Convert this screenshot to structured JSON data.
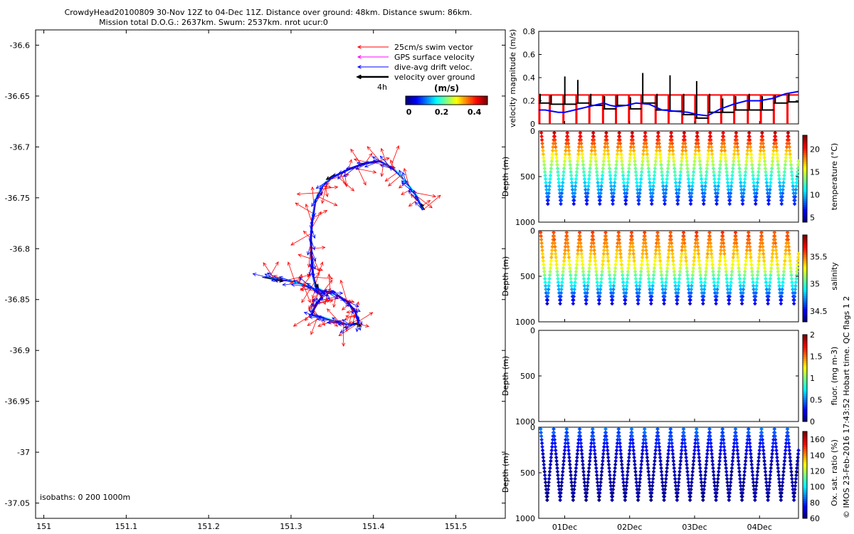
{
  "header": {
    "line1": "CrowdyHead20100809 30-Nov 12Z to 04-Dec 11Z. Distance over ground: 48km. Distance swum: 86km.",
    "line2": "Mission total D.O.G.: 2637km. Swum: 2537km. nrot ucur:0"
  },
  "side_note": "© IMOS 23-Feb-2016 17:43:52 Hobart time. QC flags 1  2",
  "colors": {
    "swim": "#ff0000",
    "gps": "#ff00ff",
    "drift": "#0000ff",
    "ground": "#000000",
    "limit": "#ff0000"
  },
  "chart_data": [
    {
      "id": "map",
      "type": "scatter",
      "title": "",
      "xlabel": "",
      "ylabel": "",
      "xlim": [
        150.99,
        151.56
      ],
      "ylim": [
        -37.065,
        -36.585
      ],
      "x_ticks": [
        "151",
        "151.1",
        "151.2",
        "151.3",
        "151.4",
        "151.5"
      ],
      "x_tick_values": [
        151,
        151.1,
        151.2,
        151.3,
        151.4,
        151.5
      ],
      "y_ticks": [
        "-36.6",
        "-36.65",
        "-36.7",
        "-36.75",
        "-36.8",
        "-36.85",
        "-36.9",
        "-36.95",
        "-37",
        "-37.05"
      ],
      "y_tick_values": [
        -36.6,
        -36.65,
        -36.7,
        -36.75,
        -36.8,
        -36.85,
        -36.9,
        -36.95,
        -37,
        -37.05
      ],
      "legend": [
        {
          "label": "25cm/s swim vector",
          "color": "#ff0000"
        },
        {
          "label": "GPS surface velocity",
          "color": "#ff00ff"
        },
        {
          "label": "dive-avg drift veloc.",
          "color": "#0000ff"
        },
        {
          "label": "velocity over ground",
          "color": "#000000"
        }
      ],
      "legend_extra": "4h",
      "colorbar": {
        "title": "(m/s)",
        "ticks": [
          "0",
          "0.2",
          "0.4"
        ],
        "range": [
          -0.02,
          0.48
        ]
      },
      "isobaths_label": "isobaths: 0   200  1000m",
      "track": [
        [
          151.46,
          -36.762
        ],
        [
          151.452,
          -36.748
        ],
        [
          151.44,
          -36.735
        ],
        [
          151.425,
          -36.722
        ],
        [
          151.408,
          -36.714
        ],
        [
          151.39,
          -36.716
        ],
        [
          151.37,
          -36.722
        ],
        [
          151.35,
          -36.73
        ],
        [
          151.338,
          -36.738
        ],
        [
          151.33,
          -36.752
        ],
        [
          151.326,
          -36.77
        ],
        [
          151.324,
          -36.79
        ],
        [
          151.325,
          -36.81
        ],
        [
          151.327,
          -36.828
        ],
        [
          151.33,
          -36.838
        ],
        [
          151.34,
          -36.842
        ],
        [
          151.355,
          -36.845
        ],
        [
          151.368,
          -36.852
        ],
        [
          151.378,
          -36.862
        ],
        [
          151.382,
          -36.873
        ],
        [
          151.372,
          -36.875
        ],
        [
          151.355,
          -36.872
        ],
        [
          151.34,
          -36.868
        ],
        [
          151.325,
          -36.865
        ],
        [
          151.33,
          -36.855
        ],
        [
          151.338,
          -36.847
        ],
        [
          151.33,
          -36.84
        ],
        [
          151.31,
          -36.834
        ],
        [
          151.29,
          -36.83
        ],
        [
          151.268,
          -36.828
        ]
      ],
      "ground_segments": [
        [
          [
            151.462,
            -36.762
          ],
          [
            151.458,
            -36.756
          ]
        ],
        [
          [
            151.353,
            -36.727
          ],
          [
            151.343,
            -36.732
          ]
        ],
        [
          [
            151.329,
            -36.833
          ],
          [
            151.333,
            -36.838
          ]
        ],
        [
          [
            151.265,
            -36.828
          ],
          [
            151.29,
            -36.832
          ]
        ],
        [
          [
            151.375,
            -36.873
          ],
          [
            151.385,
            -36.876
          ]
        ]
      ]
    },
    {
      "id": "velocity",
      "type": "line",
      "title": "",
      "xlabel": "",
      "ylabel": "velocity magnitude (m/s)",
      "ylim": [
        0,
        0.8
      ],
      "y_ticks": [
        "0",
        "0.2",
        "0.4",
        "0.6",
        "0.8"
      ],
      "y_tick_values": [
        0,
        0.2,
        0.4,
        0.6,
        0.8
      ],
      "xlim": [
        0,
        4.0
      ],
      "x_ticks": [
        "01Dec",
        "02Dec",
        "03Dec",
        "04Dec"
      ],
      "x_tick_values": [
        0.4,
        1.4,
        2.4,
        3.4
      ],
      "red_level": 0.25,
      "red_drop_times": [
        0.01,
        0.17,
        0.38,
        0.58,
        0.78,
        0.99,
        1.19,
        1.39,
        1.58,
        1.8,
        2.0,
        2.21,
        2.41,
        2.61,
        2.81,
        3.01,
        3.22,
        3.42,
        3.62,
        3.83
      ],
      "blue_line": {
        "x": [
          0.0,
          0.1,
          0.2,
          0.3,
          0.4,
          0.55,
          0.7,
          0.85,
          1.0,
          1.1,
          1.2,
          1.35,
          1.5,
          1.7,
          1.9,
          2.1,
          2.3,
          2.45,
          2.6,
          2.8,
          3.0,
          3.2,
          3.4,
          3.6,
          3.8,
          4.0
        ],
        "y": [
          0.12,
          0.12,
          0.11,
          0.1,
          0.1,
          0.12,
          0.14,
          0.16,
          0.18,
          0.16,
          0.15,
          0.16,
          0.18,
          0.17,
          0.12,
          0.11,
          0.1,
          0.08,
          0.07,
          0.13,
          0.17,
          0.2,
          0.2,
          0.22,
          0.26,
          0.28
        ]
      },
      "black_segments": [
        {
          "x0": 0.0,
          "x1": 0.17,
          "y": 0.18,
          "spike": 0.26
        },
        {
          "x0": 0.17,
          "x1": 0.38,
          "y": 0.17,
          "spike": 0.25
        },
        {
          "x0": 0.38,
          "x1": 0.58,
          "y": 0.17,
          "spike": 0.41
        },
        {
          "x0": 0.58,
          "x1": 0.78,
          "y": 0.18,
          "spike": 0.38
        },
        {
          "x0": 0.78,
          "x1": 0.99,
          "y": 0.16,
          "spike": 0.26
        },
        {
          "x0": 0.99,
          "x1": 1.19,
          "y": 0.13,
          "spike": 0.24
        },
        {
          "x0": 1.19,
          "x1": 1.39,
          "y": 0.16,
          "spike": 0.25
        },
        {
          "x0": 1.39,
          "x1": 1.58,
          "y": 0.13,
          "spike": 0.23
        },
        {
          "x0": 1.58,
          "x1": 1.8,
          "y": 0.18,
          "spike": 0.44
        },
        {
          "x0": 1.8,
          "x1": 2.0,
          "y": 0.12,
          "spike": 0.26
        },
        {
          "x0": 2.0,
          "x1": 2.21,
          "y": 0.11,
          "spike": 0.42
        },
        {
          "x0": 2.21,
          "x1": 2.41,
          "y": 0.08,
          "spike": 0.26
        },
        {
          "x0": 2.41,
          "x1": 2.61,
          "y": 0.05,
          "spike": 0.37
        },
        {
          "x0": 2.61,
          "x1": 2.81,
          "y": 0.1,
          "spike": 0.26
        },
        {
          "x0": 2.81,
          "x1": 3.01,
          "y": 0.1,
          "spike": 0.22
        },
        {
          "x0": 3.01,
          "x1": 3.22,
          "y": 0.12,
          "spike": 0.24
        },
        {
          "x0": 3.22,
          "x1": 3.42,
          "y": 0.12,
          "spike": 0.26
        },
        {
          "x0": 3.42,
          "x1": 3.62,
          "y": 0.12,
          "spike": 0.24
        },
        {
          "x0": 3.62,
          "x1": 3.83,
          "y": 0.18,
          "spike": 0.25
        },
        {
          "x0": 3.83,
          "x1": 4.0,
          "y": 0.19,
          "spike": 0.26
        }
      ]
    },
    {
      "id": "temperature",
      "type": "scatter",
      "title": "",
      "ylabel": "Depth (m)",
      "ylim": [
        1000,
        0
      ],
      "y_ticks": [
        "0",
        "500",
        "1000"
      ],
      "y_tick_values": [
        0,
        500,
        1000
      ],
      "colorbar": {
        "label": "temperature (°C)",
        "range": [
          4,
          23
        ],
        "ticks": [
          "5",
          "10",
          "15",
          "20"
        ],
        "tick_values": [
          5,
          10,
          15,
          20
        ]
      },
      "profile": {
        "x_start": 0.04,
        "period": 0.2,
        "count": 20,
        "surface_depth": 20,
        "bottom_depth": 800,
        "surface_value": 21.5,
        "bottom_value": 6.5,
        "mid_value": 14
      }
    },
    {
      "id": "salinity",
      "type": "scatter",
      "title": "",
      "ylabel": "Depth (m)",
      "ylim": [
        1000,
        0
      ],
      "y_ticks": [
        "0",
        "500",
        "1000"
      ],
      "y_tick_values": [
        0,
        500,
        1000
      ],
      "colorbar": {
        "label": "salinity",
        "range": [
          34.3,
          35.9
        ],
        "ticks": [
          "34.5",
          "35",
          "35.5"
        ],
        "tick_values": [
          34.5,
          35,
          35.5
        ]
      },
      "profile": {
        "x_start": 0.03,
        "period": 0.2,
        "count": 20,
        "surface_depth": 20,
        "bottom_depth": 800,
        "surface_value": 35.6,
        "bottom_value": 34.45,
        "mid_value": 35.3
      }
    },
    {
      "id": "fluor",
      "type": "scatter",
      "title": "",
      "ylabel": "Depth (m)",
      "ylim": [
        1000,
        0
      ],
      "y_ticks": [
        "0",
        "500",
        "1000"
      ],
      "y_tick_values": [
        0,
        500,
        1000
      ],
      "colorbar": {
        "label": "fluor. (mg m-3)",
        "range": [
          0,
          2
        ],
        "ticks": [
          "0",
          "0.5",
          "1",
          "1.5",
          "2"
        ],
        "tick_values": [
          0,
          0.5,
          1,
          1.5,
          2
        ]
      },
      "profile": null
    },
    {
      "id": "oxygen",
      "type": "scatter",
      "title": "",
      "ylabel": "Depth (m)",
      "ylim": [
        1000,
        0
      ],
      "y_ticks": [
        "0",
        "500",
        "1000"
      ],
      "y_tick_values": [
        0,
        500,
        1000
      ],
      "x_ticks": [
        "01Dec",
        "02Dec",
        "03Dec",
        "04Dec"
      ],
      "x_tick_values": [
        0.4,
        1.4,
        2.4,
        3.4
      ],
      "colorbar": {
        "label": "Ox. sat. ratio (%)",
        "range": [
          60,
          170
        ],
        "ticks": [
          "60",
          "80",
          "100",
          "120",
          "140",
          "160"
        ],
        "tick_values": [
          60,
          80,
          100,
          120,
          140,
          160
        ]
      },
      "profile": {
        "x_start": 0.03,
        "period": 0.2,
        "count": 20,
        "surface_depth": 20,
        "bottom_depth": 800,
        "surface_value": 85,
        "bottom_value": 63,
        "mid_value": 65
      }
    }
  ]
}
